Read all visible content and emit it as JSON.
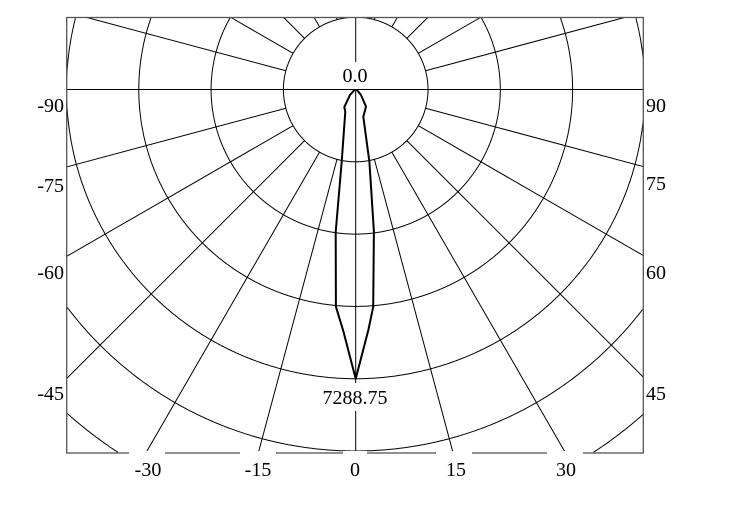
{
  "chart_data": {
    "type": "polar",
    "title": "",
    "center_label": "0.0",
    "max_label": "7288.75",
    "radial_max": 7288.75,
    "radial_rings": 4,
    "angle_step_deg": 15,
    "grid": true,
    "left_tick_labels": [
      "-90",
      "-75",
      "-60",
      "-45"
    ],
    "right_tick_labels": [
      "90",
      "75",
      "60",
      "45"
    ],
    "bottom_tick_labels": [
      "-30",
      "-15",
      "0",
      "15",
      "30"
    ],
    "series": [
      {
        "angles": [
          -90,
          -60,
          -46,
          -33,
          -25,
          -11,
          -8,
          -5.2,
          -3,
          0,
          3,
          4.6,
          7.3,
          10.7,
          15.6,
          31,
          44,
          60,
          90
        ],
        "values": [
          0,
          50,
          199,
          527,
          618,
          1854,
          3621,
          5498,
          6078,
          7288.75,
          6078,
          5498,
          3607,
          1854,
          711,
          504,
          192,
          50,
          0
        ]
      }
    ],
    "colors": {
      "line": "#000000",
      "grid": "#000000",
      "background": "#ffffff"
    }
  }
}
